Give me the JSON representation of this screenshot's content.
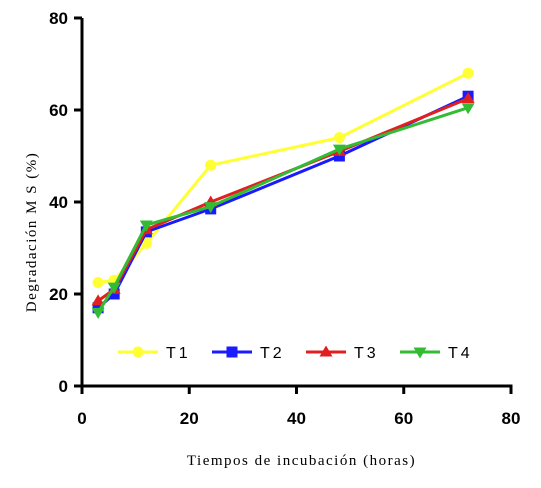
{
  "chart_data": {
    "type": "line",
    "xlabel": "Tiempos de incubación (horas)",
    "ylabel": "Degradación M S (%)",
    "xlim": [
      0,
      80
    ],
    "ylim": [
      0,
      80
    ],
    "xticks": [
      0,
      20,
      40,
      60,
      80
    ],
    "yticks": [
      0,
      20,
      40,
      60,
      80
    ],
    "grid": false,
    "legend_position": "bottom-center",
    "x": [
      3,
      6,
      12,
      24,
      48,
      72
    ],
    "series": [
      {
        "name": "T1",
        "color": "#ffff33",
        "marker": "circle",
        "values": [
          22.5,
          23.0,
          31.0,
          48.0,
          54.0,
          68.0
        ]
      },
      {
        "name": "T2",
        "color": "#1a1aff",
        "marker": "square",
        "values": [
          17.0,
          20.0,
          33.5,
          38.5,
          50.0,
          63.0
        ]
      },
      {
        "name": "T3",
        "color": "#e02020",
        "marker": "triangle-up",
        "values": [
          18.5,
          21.0,
          34.0,
          40.0,
          51.0,
          62.5
        ]
      },
      {
        "name": "T4",
        "color": "#33bb33",
        "marker": "triangle-down",
        "values": [
          16.0,
          21.5,
          35.0,
          39.0,
          51.5,
          60.5
        ]
      }
    ]
  }
}
